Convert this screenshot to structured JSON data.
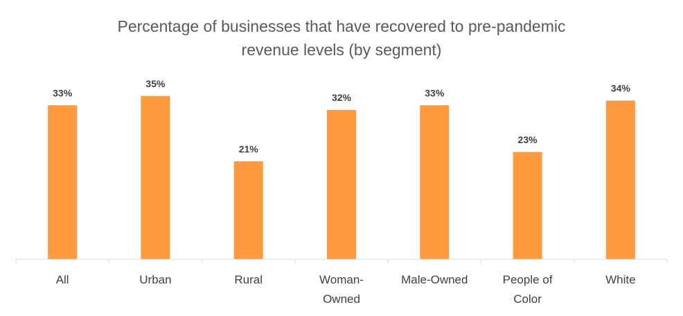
{
  "chart_data": {
    "type": "bar",
    "title_lines": [
      "Percentage of businesses that have recovered to pre-pandemic",
      "revenue levels (by segment)"
    ],
    "categories": [
      [
        "All"
      ],
      [
        "Urban"
      ],
      [
        "Rural"
      ],
      [
        "Woman-",
        "Owned"
      ],
      [
        "Male-Owned"
      ],
      [
        "People of",
        "Color"
      ],
      [
        "White"
      ]
    ],
    "values": [
      33,
      35,
      21,
      32,
      33,
      23,
      34
    ],
    "value_labels": [
      "33%",
      "35%",
      "21%",
      "32%",
      "33%",
      "23%",
      "34%"
    ],
    "ylim": [
      0,
      40
    ],
    "grid": false,
    "legend": "none",
    "bar_color": "#FF9A3F",
    "axis_color": "#D9D9D9"
  }
}
